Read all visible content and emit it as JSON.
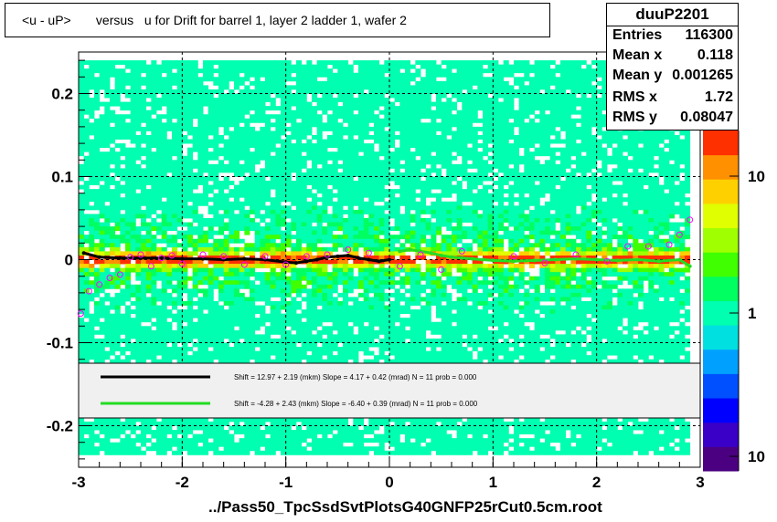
{
  "title": "<u - uP>       versus   u for Drift for barrel 1, layer 2 ladder 1, wafer 2",
  "stats": {
    "name": "duuP2201",
    "rows": [
      {
        "label": "Entries",
        "value": "116300"
      },
      {
        "label": "Mean x",
        "value": "0.118"
      },
      {
        "label": "Mean y",
        "value": "0.001265"
      },
      {
        "label": "RMS x",
        "value": "1.72"
      },
      {
        "label": "RMS y",
        "value": "0.08047"
      }
    ]
  },
  "footer": "../Pass50_TpcSsdSvtPlotsG40GNFP25rCut0.5cm.root",
  "legend": {
    "entries": [
      {
        "color": "#000000",
        "text": "Shift =    12.97 + 2.19 (mkm) Slope =    4.17 + 0.42 (mrad)  N = 11 prob = 0.000"
      },
      {
        "color": "#22dd22",
        "text": "Shift =    -4.28 + 2.43 (mkm) Slope =    -6.40 + 0.39 (mrad)  N = 11 prob = 0.000"
      }
    ]
  },
  "chart_data": {
    "type": "heatmap",
    "xlim": [
      -3,
      3
    ],
    "ylim": [
      -0.25,
      0.25
    ],
    "x_ticks": [
      -3,
      -2,
      -1,
      0,
      1,
      2,
      3
    ],
    "x_tick_labels": [
      "-3",
      "-2",
      "-1",
      "0",
      "1",
      "2",
      "3"
    ],
    "y_ticks": [
      -0.2,
      -0.1,
      0,
      0.1,
      0.2
    ],
    "y_tick_labels": [
      "-0.2",
      "-0.1",
      "0",
      "0.1",
      "0.2"
    ],
    "grid": true,
    "colorbar": {
      "scale": "log",
      "ticks": [
        10,
        1,
        10
      ],
      "tick_labels": [
        "10",
        "1",
        "10"
      ],
      "colors": [
        "#4b0082",
        "#3a00c8",
        "#0000ff",
        "#0050ff",
        "#00a0ff",
        "#00e0e0",
        "#00ffb0",
        "#00ff60",
        "#40ff00",
        "#a0ff00",
        "#e0ff00",
        "#ffd000",
        "#ff9000",
        "#ff3000"
      ]
    },
    "series": [
      {
        "name": "profile-black",
        "color": "#000000",
        "x": [
          -2.95,
          -2.8,
          -2.6,
          -2.4,
          -2.2,
          -2.0,
          -1.8,
          -1.6,
          -1.4,
          -1.2,
          -1.0,
          -0.9,
          -0.8,
          -0.7,
          -0.6,
          -0.5,
          -0.4,
          -0.3,
          -0.2,
          -0.1,
          0.0
        ],
        "y": [
          0.008,
          0.003,
          0.002,
          0.002,
          0.002,
          0.001,
          0.001,
          0.0,
          0.001,
          0.0,
          -0.003,
          -0.004,
          -0.002,
          0.0,
          0.003,
          0.004,
          0.005,
          0.002,
          0.0,
          -0.002,
          0.0
        ]
      },
      {
        "name": "profile-green",
        "color": "#22dd22",
        "x": [
          0.1,
          0.2,
          0.3,
          0.4,
          0.5,
          0.6,
          0.7,
          0.8,
          0.9,
          1.0,
          1.2,
          1.4,
          1.6,
          1.8,
          2.0,
          2.2,
          2.4,
          2.6,
          2.8,
          2.9
        ],
        "y": [
          0.01,
          0.012,
          0.01,
          0.008,
          0.005,
          0.003,
          0.002,
          0.001,
          0.0,
          -0.001,
          -0.002,
          -0.001,
          0.0,
          0.001,
          0.0,
          -0.001,
          0.0,
          -0.002,
          0.0,
          -0.008
        ]
      },
      {
        "name": "markers-magenta",
        "color": "#ff00ff",
        "x": [
          -2.98,
          -2.9,
          -2.8,
          -2.7,
          -2.6,
          -2.5,
          -2.4,
          -2.3,
          -2.2,
          -2.1,
          -2.0,
          -1.8,
          -1.6,
          -1.4,
          -1.2,
          -1.0,
          -0.8,
          -0.6,
          -0.4,
          -0.2,
          0.1,
          0.3,
          0.5,
          0.7,
          1.2,
          1.5,
          1.8,
          2.1,
          2.3,
          2.5,
          2.7,
          2.8,
          2.9
        ],
        "y": [
          -0.065,
          -0.038,
          -0.03,
          -0.022,
          -0.018,
          0.003,
          0.006,
          -0.008,
          0.002,
          0.005,
          -0.005,
          0.006,
          0.004,
          -0.006,
          0.004,
          -0.006,
          0.004,
          0.006,
          0.012,
          0.008,
          -0.008,
          0.006,
          -0.012,
          0.01,
          0.004,
          -0.004,
          0.006,
          -0.002,
          0.016,
          0.016,
          0.018,
          0.03,
          0.048
        ]
      }
    ]
  }
}
